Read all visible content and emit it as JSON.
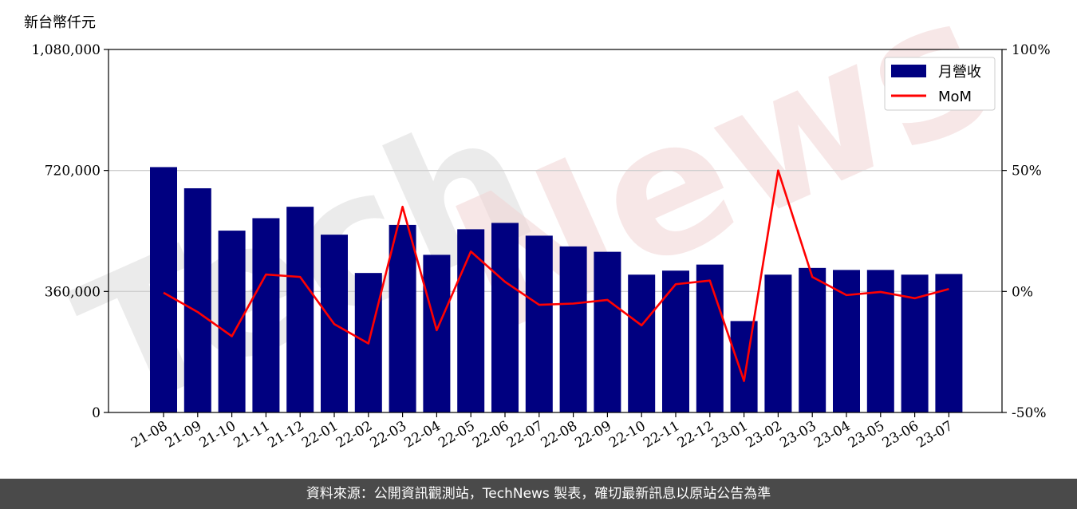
{
  "unit_label": "新台幣仟元",
  "footer_text": "資料來源：公開資訊觀測站，TechNews 製表，確切最新訊息以原站公告為準",
  "watermark": {
    "text_gray": "Tech",
    "text_pink": "News"
  },
  "chart_data": {
    "type": "bar",
    "categories": [
      "21-08",
      "21-09",
      "21-10",
      "21-11",
      "21-12",
      "22-01",
      "22-02",
      "22-03",
      "22-04",
      "22-05",
      "22-06",
      "22-07",
      "22-08",
      "22-09",
      "22-10",
      "22-11",
      "22-12",
      "23-01",
      "23-02",
      "23-03",
      "23-04",
      "23-05",
      "23-06",
      "23-07"
    ],
    "series": [
      {
        "name": "月營收",
        "type": "bar",
        "axis": "left",
        "color": "#000080",
        "values": [
          730000,
          667000,
          541000,
          578000,
          612000,
          529000,
          415000,
          558000,
          469000,
          545000,
          564000,
          526000,
          494000,
          478000,
          410000,
          422000,
          440000,
          272000,
          410000,
          430000,
          424000,
          424000,
          410000,
          412000
        ]
      },
      {
        "name": "MoM",
        "type": "line",
        "axis": "right",
        "color": "#ff0000",
        "values": [
          -0.5,
          -8.5,
          -18.5,
          7.0,
          6.0,
          -13.5,
          -21.5,
          35.0,
          -16.0,
          16.5,
          4.0,
          -5.5,
          -5.0,
          -3.5,
          -14.0,
          3.0,
          4.5,
          -37.0,
          50.0,
          6.0,
          -1.5,
          -0.2,
          -2.8,
          1.0
        ]
      }
    ],
    "y_left": {
      "ylim": [
        0,
        1080000
      ],
      "ticks": [
        0,
        360000,
        720000,
        1080000
      ],
      "tick_labels": [
        "0",
        "360,000",
        "720,000",
        "1,080,000"
      ]
    },
    "y_right": {
      "ylim": [
        -50,
        100
      ],
      "ticks": [
        -50,
        0,
        50,
        100
      ],
      "tick_labels": [
        "-50%",
        "0%",
        "50%",
        "100%"
      ]
    },
    "grid": "horizontal",
    "legend": "top-right"
  }
}
